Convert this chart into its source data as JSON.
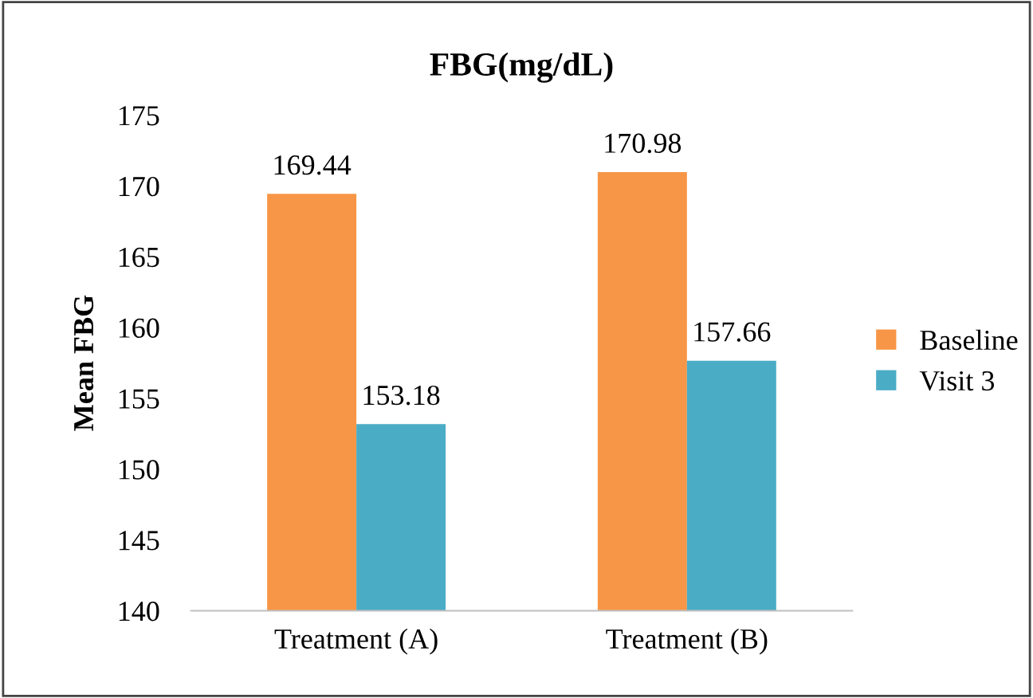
{
  "chart_data": {
    "type": "bar",
    "title": "FBG(mg/dL)",
    "ylabel": "Mean FBG",
    "categories": [
      "Treatment (A)",
      "Treatment (B)"
    ],
    "series": [
      {
        "name": "Baseline",
        "color": "#f79646",
        "values": [
          169.44,
          170.98
        ]
      },
      {
        "name": "Visit 3",
        "color": "#4bacc6",
        "values": [
          153.18,
          157.66
        ]
      }
    ],
    "ylim": [
      140,
      175
    ],
    "yticks": [
      140,
      145,
      150,
      155,
      160,
      165,
      170,
      175
    ],
    "data_labels": true,
    "grid": false,
    "legend": "right"
  }
}
